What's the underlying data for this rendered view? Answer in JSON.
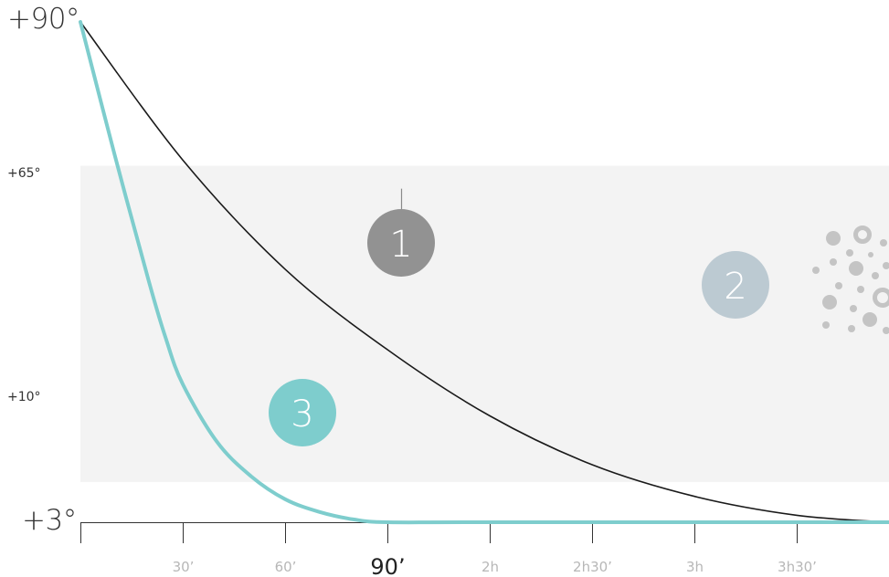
{
  "chart_data": {
    "type": "line",
    "title": "",
    "xlabel": "",
    "ylabel": "",
    "x_unit": "minutes",
    "xlim": [
      0,
      237
    ],
    "ylim": [
      3,
      90
    ],
    "x_tick_labels": [
      "30’",
      "60’",
      "90’",
      "2h",
      "2h30’",
      "3h",
      "3h30’"
    ],
    "x_tick_values": [
      30,
      60,
      90,
      120,
      150,
      180,
      210
    ],
    "x_tick_emphasis": "90’",
    "y_labels": [
      {
        "value": 90,
        "label": "+90°",
        "style": "big"
      },
      {
        "value": 65,
        "label": "+65°",
        "style": "small"
      },
      {
        "value": 10,
        "label": "+10°",
        "style": "small"
      },
      {
        "value": 3,
        "label": "+3°",
        "style": "big"
      }
    ],
    "band": {
      "from": 10,
      "to": 65,
      "color": "#f3f3f3"
    },
    "series": [
      {
        "id": "1",
        "color": "#1a1a1a",
        "x": [
          0,
          30,
          60,
          90,
          120,
          150,
          180,
          210,
          237
        ],
        "y": [
          90,
          66,
          47,
          33,
          21.5,
          13,
          7.5,
          4.2,
          3
        ]
      },
      {
        "id": "3",
        "color": "#7ecdcd",
        "x": [
          0,
          10,
          20,
          25,
          30,
          40,
          50,
          60,
          70,
          80,
          90,
          120,
          237
        ],
        "y": [
          90,
          67,
          45,
          35,
          27,
          17,
          11,
          7,
          4.8,
          3.5,
          3,
          3,
          3
        ]
      }
    ],
    "markers": [
      {
        "label": "1",
        "color": "#929292",
        "stem_color": "#8a8a8a",
        "at_x": 95,
        "at_y": 61
      },
      {
        "label": "2",
        "color": "#bccad2",
        "at_x": 193,
        "at_y": 41
      },
      {
        "label": "3",
        "color": "#7ecdcd",
        "stem_color": "#9fd8d8",
        "at_x": 65,
        "at_y": 22
      }
    ]
  }
}
